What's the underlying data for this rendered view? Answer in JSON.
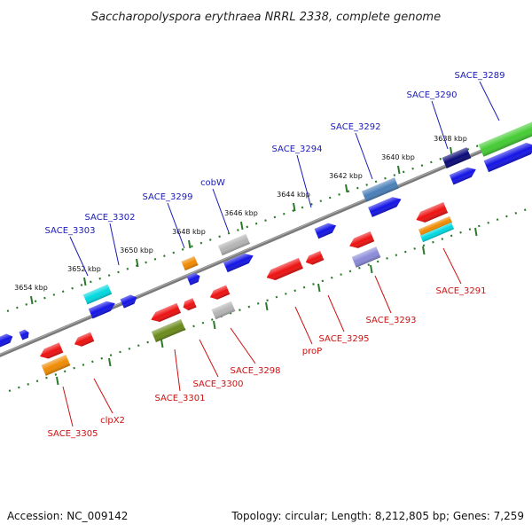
{
  "title": "Saccharopolyspora erythraea NRRL 2338, complete genome",
  "footer": {
    "accession": "Accession: NC_009142",
    "topology": "Topology: circular; Length: 8,212,805 bp; Genes: 7,259"
  },
  "colors": {
    "upper_label": "#1a1ab8",
    "lower_label": "#cc1111",
    "tick": "#2a7a2a",
    "axis": "#7a7a7a"
  },
  "ticks": [
    {
      "label": "3654 kbp"
    },
    {
      "label": "3652 kbp"
    },
    {
      "label": "3650 kbp"
    },
    {
      "label": "3648 kbp"
    },
    {
      "label": "3646 kbp"
    },
    {
      "label": "3644 kbp"
    },
    {
      "label": "3642 kbp"
    },
    {
      "label": "3640 kbp"
    },
    {
      "label": "3638 kbp"
    }
  ],
  "upper_labels": [
    {
      "text": "SACE_3303"
    },
    {
      "text": "SACE_3302"
    },
    {
      "text": "SACE_3299"
    },
    {
      "text": "cobW"
    },
    {
      "text": "SACE_3294"
    },
    {
      "text": "SACE_3292"
    },
    {
      "text": "SACE_3290"
    },
    {
      "text": "SACE_3289"
    }
  ],
  "lower_labels": [
    {
      "text": "SACE_3305"
    },
    {
      "text": "clpX2"
    },
    {
      "text": "SACE_3301"
    },
    {
      "text": "SACE_3300"
    },
    {
      "text": "SACE_3298"
    },
    {
      "text": "proP"
    },
    {
      "text": "SACE_3295"
    },
    {
      "text": "SACE_3293"
    },
    {
      "text": "SACE_3291"
    }
  ],
  "genes": [
    {
      "color": "#1414e6"
    },
    {
      "color": "#1414e6"
    },
    {
      "color": "#00d8e0"
    },
    {
      "color": "#1414e6"
    },
    {
      "color": "#1414e6"
    },
    {
      "color": "#f08a00"
    },
    {
      "color": "#1414e6"
    },
    {
      "color": "#b4b4b4"
    },
    {
      "color": "#1414e6"
    },
    {
      "color": "#1414e6"
    },
    {
      "color": "#4a7fb8"
    },
    {
      "color": "#1414e6"
    },
    {
      "color": "#0a0a78"
    },
    {
      "color": "#1414e6"
    },
    {
      "color": "#44cc33"
    },
    {
      "color": "#1414e6"
    },
    {
      "color": "#ee1111"
    },
    {
      "color": "#ee1111"
    },
    {
      "color": "#f08a00"
    },
    {
      "color": "#ee1111"
    },
    {
      "color": "#ee1111"
    },
    {
      "color": "#6a8a1a"
    },
    {
      "color": "#ee1111"
    },
    {
      "color": "#b4b4b4"
    },
    {
      "color": "#ee1111"
    },
    {
      "color": "#ee1111"
    },
    {
      "color": "#ee1111"
    },
    {
      "color": "#8a8ad8"
    },
    {
      "color": "#ee1111"
    },
    {
      "color": "#f08a00"
    },
    {
      "color": "#00d8e0"
    }
  ]
}
